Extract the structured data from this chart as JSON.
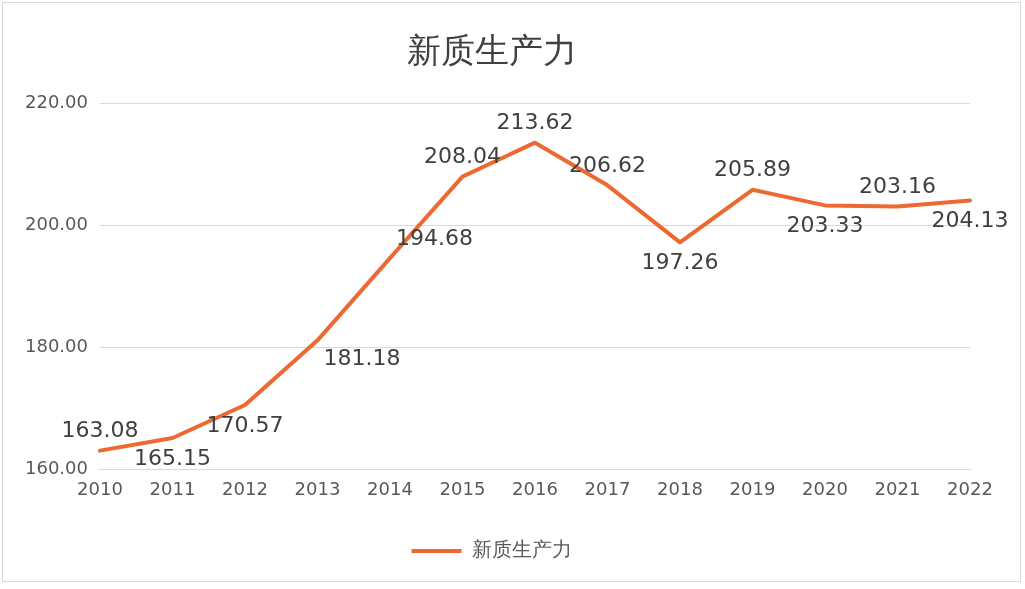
{
  "chart_data": {
    "type": "line",
    "title": "新质生产力",
    "categories": [
      "2010",
      "2011",
      "2012",
      "2013",
      "2014",
      "2015",
      "2016",
      "2017",
      "2018",
      "2019",
      "2020",
      "2021",
      "2022"
    ],
    "series": [
      {
        "name": "新质生产力",
        "color": "#ec6a32",
        "values": [
          163.08,
          165.15,
          170.57,
          181.18,
          194.68,
          208.04,
          213.62,
          206.62,
          197.26,
          205.89,
          203.33,
          203.16,
          204.13
        ]
      }
    ],
    "ylim": [
      160,
      220
    ],
    "yticks": [
      {
        "value": 160,
        "label": "160.00"
      },
      {
        "value": 180,
        "label": "180.00"
      },
      {
        "value": 200,
        "label": "200.00"
      },
      {
        "value": 220,
        "label": "220.00"
      }
    ],
    "grid": "y",
    "legend": "bottom",
    "marker": "none",
    "line_style": "solid",
    "data_labels": true
  }
}
